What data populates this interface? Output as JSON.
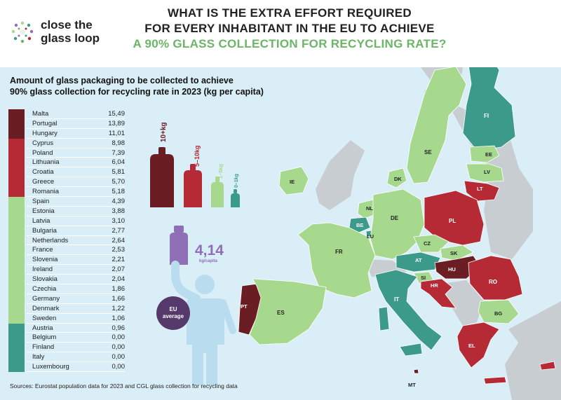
{
  "header": {
    "logo_line1": "close the",
    "logo_line2": "glass loop",
    "title_line1": "WHAT IS THE EXTRA EFFORT REQUIRED",
    "title_line2": "FOR EVERY INHABITANT IN THE EU TO ACHIEVE",
    "title_line3": "A 90% GLASS COLLECTION FOR RECYCLING RATE?"
  },
  "colors": {
    "tier_10plus": "#6b1d24",
    "tier_5_10": "#b52a35",
    "tier_1_5": "#a6d98e",
    "tier_0_1": "#3c9a8a",
    "eu_average": "#8f6fb5",
    "background": "#d9eef6",
    "non_eu_land": "#c8cdd1"
  },
  "weights": {
    "w1": "10+kg",
    "w2": "5–10kg",
    "w3": "1–5kg",
    "w4": "0–1kg"
  },
  "eu_average": {
    "value": "4,14",
    "unit": "kg/capita",
    "label_line1": "EU",
    "label_line2": "average"
  },
  "source": "Sources: Eurostat population data for 2023 and CGL glass collection for recycling data",
  "chart_data": {
    "type": "table",
    "title_line1": "Amount of glass packaging to be collected to achieve",
    "title_line2": "90% glass collection for recycling rate in 2023 (kg per capita)",
    "rows": [
      {
        "country": "Malta",
        "value": "15,49",
        "tier": "10+"
      },
      {
        "country": "Portugal",
        "value": "13,89",
        "tier": "10+"
      },
      {
        "country": "Hungary",
        "value": "11,01",
        "tier": "10+"
      },
      {
        "country": "Cyprus",
        "value": "8,98",
        "tier": "5-10"
      },
      {
        "country": "Poland",
        "value": "7,39",
        "tier": "5-10"
      },
      {
        "country": "Lithuania",
        "value": "6,04",
        "tier": "5-10"
      },
      {
        "country": "Croatia",
        "value": "5,81",
        "tier": "5-10"
      },
      {
        "country": "Greece",
        "value": "5,70",
        "tier": "5-10"
      },
      {
        "country": "Romania",
        "value": "5,18",
        "tier": "5-10"
      },
      {
        "country": "Spain",
        "value": "4,39",
        "tier": "1-5"
      },
      {
        "country": "Estonia",
        "value": "3,88",
        "tier": "1-5"
      },
      {
        "country": "Latvia",
        "value": "3,10",
        "tier": "1-5"
      },
      {
        "country": "Bulgaria",
        "value": "2,77",
        "tier": "1-5"
      },
      {
        "country": "Netherlands",
        "value": "2,64",
        "tier": "1-5"
      },
      {
        "country": "France",
        "value": "2,53",
        "tier": "1-5"
      },
      {
        "country": "Slovenia",
        "value": "2,21",
        "tier": "1-5"
      },
      {
        "country": "Ireland",
        "value": "2,07",
        "tier": "1-5"
      },
      {
        "country": "Slovakia",
        "value": "2,04",
        "tier": "1-5"
      },
      {
        "country": "Czechia",
        "value": "1,86",
        "tier": "1-5"
      },
      {
        "country": "Germany",
        "value": "1,66",
        "tier": "1-5"
      },
      {
        "country": "Denmark",
        "value": "1,22",
        "tier": "1-5"
      },
      {
        "country": "Sweden",
        "value": "1,06",
        "tier": "1-5"
      },
      {
        "country": "Austria",
        "value": "0,96",
        "tier": "0-1"
      },
      {
        "country": "Belgium",
        "value": "0,00",
        "tier": "0-1"
      },
      {
        "country": "Finland",
        "value": "0,00",
        "tier": "0-1"
      },
      {
        "country": "Italy",
        "value": "0,00",
        "tier": "0-1"
      },
      {
        "country": "Luxembourg",
        "value": "0,00",
        "tier": "0-1"
      }
    ]
  },
  "map": {
    "countries": [
      {
        "code": "FI",
        "tier": "0-1"
      },
      {
        "code": "SE",
        "tier": "1-5"
      },
      {
        "code": "EE",
        "tier": "1-5"
      },
      {
        "code": "LV",
        "tier": "1-5"
      },
      {
        "code": "LT",
        "tier": "5-10"
      },
      {
        "code": "IE",
        "tier": "1-5"
      },
      {
        "code": "DK",
        "tier": "1-5"
      },
      {
        "code": "NL",
        "tier": "1-5"
      },
      {
        "code": "BE",
        "tier": "0-1"
      },
      {
        "code": "LU",
        "tier": "0-1"
      },
      {
        "code": "DE",
        "tier": "1-5"
      },
      {
        "code": "PL",
        "tier": "5-10"
      },
      {
        "code": "FR",
        "tier": "1-5"
      },
      {
        "code": "CZ",
        "tier": "1-5"
      },
      {
        "code": "SK",
        "tier": "1-5"
      },
      {
        "code": "AT",
        "tier": "0-1"
      },
      {
        "code": "HU",
        "tier": "10+"
      },
      {
        "code": "RO",
        "tier": "5-10"
      },
      {
        "code": "SI",
        "tier": "1-5"
      },
      {
        "code": "HR",
        "tier": "5-10"
      },
      {
        "code": "PT",
        "tier": "10+"
      },
      {
        "code": "ES",
        "tier": "1-5"
      },
      {
        "code": "IT",
        "tier": "0-1"
      },
      {
        "code": "BG",
        "tier": "1-5"
      },
      {
        "code": "EL",
        "tier": "5-10"
      },
      {
        "code": "MT",
        "tier": "10+"
      }
    ]
  }
}
